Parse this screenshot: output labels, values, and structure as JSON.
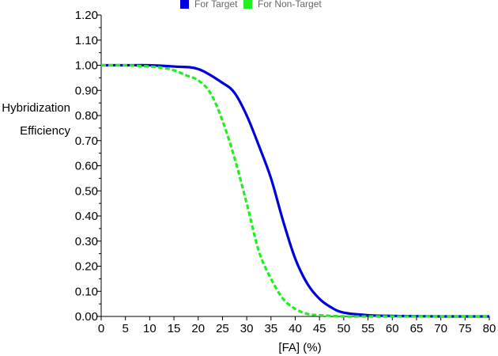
{
  "chart_data": {
    "type": "line",
    "title": "",
    "xlabel": "[FA] (%)",
    "ylabel_lines": [
      "Hybridization",
      "Efficiency"
    ],
    "xlim": [
      0,
      80
    ],
    "ylim": [
      0,
      1.2
    ],
    "x_ticks": [
      0,
      5,
      10,
      15,
      20,
      25,
      30,
      35,
      40,
      45,
      50,
      55,
      60,
      65,
      70,
      75,
      80
    ],
    "x_tick_labels": [
      "0",
      "5",
      "10",
      "15",
      "20",
      "25",
      "30",
      "35",
      "40",
      "45",
      "50",
      "55",
      "60",
      "65",
      "70",
      "75",
      "80"
    ],
    "y_ticks": [
      0,
      0.1,
      0.2,
      0.3,
      0.4,
      0.5,
      0.6,
      0.7,
      0.8,
      0.9,
      1.0,
      1.1,
      1.2
    ],
    "y_tick_labels": [
      "0.00",
      "0.10",
      "0.20",
      "0.30",
      "0.40",
      "0.50",
      "0.60",
      "0.70",
      "0.80",
      "0.90",
      "1.00",
      "1.10",
      "1.20"
    ],
    "grid": false,
    "legend_position": "top-center",
    "series": [
      {
        "name": "For Target",
        "color": "#0000dd",
        "style": "solid",
        "x": [
          0,
          5,
          10,
          15,
          20,
          25,
          27.5,
          30,
          32.5,
          35,
          37.5,
          40,
          42.5,
          45,
          47.5,
          50,
          55,
          60,
          65,
          70,
          75,
          80
        ],
        "y": [
          1.0,
          1.0,
          1.0,
          0.995,
          0.985,
          0.93,
          0.89,
          0.8,
          0.68,
          0.55,
          0.38,
          0.23,
          0.13,
          0.07,
          0.035,
          0.015,
          0.005,
          0.002,
          0.001,
          0.0,
          0.0,
          0.0
        ]
      },
      {
        "name": "For Non-Target",
        "color": "#22ee22",
        "style": "dashed",
        "x": [
          0,
          5,
          10,
          12.5,
          15,
          17.5,
          20,
          22.5,
          25,
          27.5,
          30,
          32.5,
          35,
          37.5,
          40,
          42.5,
          45,
          50,
          55,
          60,
          70,
          80
        ],
        "y": [
          1.0,
          1.0,
          0.995,
          0.99,
          0.98,
          0.96,
          0.94,
          0.89,
          0.78,
          0.63,
          0.45,
          0.26,
          0.15,
          0.07,
          0.03,
          0.01,
          0.005,
          0.0,
          0.0,
          0.0,
          0.0,
          0.0
        ]
      }
    ]
  }
}
